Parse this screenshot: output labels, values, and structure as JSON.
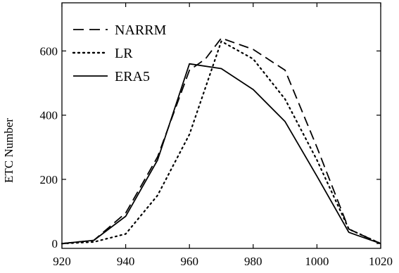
{
  "chart_data": {
    "type": "line",
    "ylabel": "ETC Number",
    "xlim": [
      920,
      1020
    ],
    "ylim": [
      -15,
      750
    ],
    "x_ticks": [
      920,
      940,
      960,
      980,
      1000,
      1020
    ],
    "y_ticks": [
      0,
      200,
      400,
      600
    ],
    "grid": false,
    "legend_position": "top-left",
    "series": [
      {
        "name": "NARRM",
        "style": "dashed",
        "color": "#000000",
        "points": [
          [
            920,
            0
          ],
          [
            930,
            10
          ],
          [
            940,
            95
          ],
          [
            950,
            270
          ],
          [
            960,
            540
          ],
          [
            965,
            575
          ],
          [
            970,
            640
          ],
          [
            980,
            605
          ],
          [
            990,
            540
          ],
          [
            1000,
            300
          ],
          [
            1010,
            45
          ],
          [
            1020,
            0
          ]
        ]
      },
      {
        "name": "LR",
        "style": "dotted",
        "color": "#000000",
        "points": [
          [
            920,
            0
          ],
          [
            930,
            5
          ],
          [
            940,
            30
          ],
          [
            950,
            150
          ],
          [
            960,
            340
          ],
          [
            970,
            630
          ],
          [
            980,
            575
          ],
          [
            990,
            450
          ],
          [
            1000,
            260
          ],
          [
            1010,
            45
          ],
          [
            1020,
            0
          ]
        ]
      },
      {
        "name": "ERA5",
        "style": "solid",
        "color": "#000000",
        "points": [
          [
            920,
            0
          ],
          [
            930,
            10
          ],
          [
            940,
            85
          ],
          [
            950,
            260
          ],
          [
            960,
            560
          ],
          [
            970,
            545
          ],
          [
            980,
            480
          ],
          [
            990,
            380
          ],
          [
            1000,
            210
          ],
          [
            1010,
            35
          ],
          [
            1020,
            0
          ]
        ]
      }
    ]
  }
}
